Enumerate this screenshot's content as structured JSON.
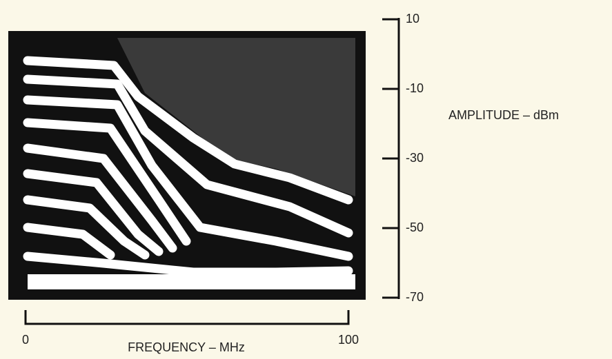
{
  "chart_data": {
    "type": "spectrum-photo",
    "x_label": "FREQUENCY – MHz",
    "y_label": "AMPLITUDE – dBm",
    "xlim": [
      0,
      100
    ],
    "xticks": [
      0,
      100
    ],
    "ylim": [
      -70,
      10
    ],
    "yticks": [
      10,
      -10,
      -30,
      -50,
      -70
    ]
  }
}
